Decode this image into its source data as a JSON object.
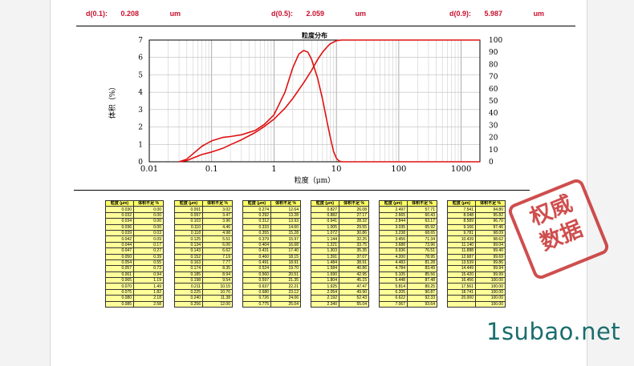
{
  "summary": [
    {
      "label": "d(0.1):",
      "value": "0.208",
      "unit": "um"
    },
    {
      "label": "d(0.5):",
      "value": "2.059",
      "unit": "um"
    },
    {
      "label": "d(0.9):",
      "value": "5.987",
      "unit": "um"
    }
  ],
  "chart_data": {
    "type": "line",
    "title": "粒度分布",
    "xlabel": "粒度（μm）",
    "ylabel": "体积（%）",
    "xscale": "log",
    "xlim": [
      0.01,
      2000
    ],
    "ylim_left": [
      0,
      7
    ],
    "ylim_right": [
      0,
      100
    ],
    "x_tick_labels": [
      "0.01",
      "0.1",
      "1",
      "10",
      "100",
      "1000"
    ],
    "y_left_tick_labels": [
      "0",
      "1",
      "2",
      "3",
      "4",
      "5",
      "6",
      "7"
    ],
    "y_right_tick_labels": [
      "0",
      "10",
      "20",
      "30",
      "40",
      "50",
      "60",
      "70",
      "80",
      "90",
      "100"
    ],
    "grid": true,
    "series": [
      {
        "axis": "left",
        "x": [
          0.03,
          0.04,
          0.05,
          0.07,
          0.1,
          0.15,
          0.2,
          0.3,
          0.5,
          0.7,
          1.0,
          1.5,
          2.0,
          2.5,
          3.0,
          3.5,
          4.0,
          5.0,
          6.0,
          7.0,
          8.0,
          9.0,
          10,
          11,
          12,
          14,
          20,
          50,
          100,
          1000,
          2000
        ],
        "y": [
          0,
          0.15,
          0.45,
          0.9,
          1.2,
          1.4,
          1.45,
          1.55,
          1.8,
          2.15,
          2.7,
          4.0,
          5.4,
          6.2,
          6.4,
          6.3,
          5.9,
          4.8,
          3.6,
          2.4,
          1.4,
          0.6,
          0.2,
          0.05,
          0,
          0,
          0,
          0,
          0,
          0,
          0
        ]
      },
      {
        "axis": "right",
        "x": [
          0.03,
          0.04,
          0.05,
          0.07,
          0.1,
          0.15,
          0.2,
          0.3,
          0.5,
          0.7,
          1.0,
          1.5,
          2.0,
          3.0,
          4.0,
          5.0,
          6.0,
          7.0,
          8.0,
          10,
          12,
          15,
          20,
          50,
          100,
          1000,
          2000
        ],
        "y": [
          0,
          1,
          3,
          6,
          8,
          11,
          14,
          18,
          24,
          29,
          35,
          44,
          52,
          65,
          75,
          84,
          90,
          94,
          97,
          99.5,
          100,
          100,
          100,
          100,
          100,
          100,
          100
        ]
      }
    ]
  },
  "table": {
    "headers": [
      "粒度 (μm)",
      "体积不足 %"
    ],
    "blocks": [
      [
        [
          "0.030",
          "0.00"
        ],
        [
          "0.032",
          "0.00"
        ],
        [
          "0.034",
          "0.00"
        ],
        [
          "0.036",
          "0.00"
        ],
        [
          "0.039",
          "0.03"
        ],
        [
          "0.042",
          "0.09"
        ],
        [
          "0.044",
          "0.17"
        ],
        [
          "0.047",
          "0.27"
        ],
        [
          "0.050",
          "0.39"
        ],
        [
          "0.054",
          "0.55"
        ],
        [
          "0.057",
          "0.73"
        ],
        [
          "0.061",
          "0.94"
        ],
        [
          "0.065",
          "1.19"
        ],
        [
          "0.070",
          "1.49"
        ],
        [
          "0.075",
          "1.82"
        ],
        [
          "0.080",
          "2.18"
        ],
        [
          "0.085",
          "2.58"
        ]
      ],
      [
        [
          "0.091",
          "3.02"
        ],
        [
          "0.097",
          "3.47"
        ],
        [
          "0.103",
          "3.96"
        ],
        [
          "0.110",
          "4.46"
        ],
        [
          "0.118",
          "4.98"
        ],
        [
          "0.125",
          "5.51"
        ],
        [
          "0.134",
          "6.06"
        ],
        [
          "0.143",
          "6.62"
        ],
        [
          "0.152",
          "7.19"
        ],
        [
          "0.163",
          "7.77"
        ],
        [
          "0.174",
          "8.35"
        ],
        [
          "0.185",
          "8.94"
        ],
        [
          "0.198",
          "9.54"
        ],
        [
          "0.211",
          "10.15"
        ],
        [
          "0.225",
          "10.76"
        ],
        [
          "0.240",
          "11.38"
        ],
        [
          "0.256",
          "12.00"
        ]
      ],
      [
        [
          "0.274",
          "12.64"
        ],
        [
          "0.292",
          "13.28"
        ],
        [
          "0.312",
          "13.93"
        ],
        [
          "0.333",
          "14.60"
        ],
        [
          "0.355",
          "15.28"
        ],
        [
          "0.379",
          "15.97"
        ],
        [
          "0.404",
          "16.68"
        ],
        [
          "0.431",
          "17.40"
        ],
        [
          "0.460",
          "18.15"
        ],
        [
          "0.491",
          "18.91"
        ],
        [
          "0.524",
          "19.70"
        ],
        [
          "0.560",
          "20.51"
        ],
        [
          "0.597",
          "21.35"
        ],
        [
          "0.637",
          "22.21"
        ],
        [
          "0.680",
          "23.12"
        ],
        [
          "0.726",
          "24.06"
        ],
        [
          "0.775",
          "25.04"
        ]
      ],
      [
        [
          "0.827",
          "26.08"
        ],
        [
          "0.882",
          "27.17"
        ],
        [
          "0.941",
          "28.32"
        ],
        [
          "1.005",
          "29.55"
        ],
        [
          "1.072",
          "30.86"
        ],
        [
          "1.144",
          "32.25"
        ],
        [
          "1.221",
          "33.75"
        ],
        [
          "1.303",
          "35.35"
        ],
        [
          "1.391",
          "37.07"
        ],
        [
          "1.484",
          "38.91"
        ],
        [
          "1.584",
          "40.86"
        ],
        [
          "1.690",
          "42.95"
        ],
        [
          "1.804",
          "45.15"
        ],
        [
          "1.925",
          "47.47"
        ],
        [
          "2.054",
          "49.90"
        ],
        [
          "2.192",
          "52.43"
        ],
        [
          "2.340",
          "55.04"
        ]
      ],
      [
        [
          "2.497",
          "57.71"
        ],
        [
          "2.665",
          "60.43"
        ],
        [
          "2.844",
          "63.17"
        ],
        [
          "3.035",
          "65.92"
        ],
        [
          "3.238",
          "68.65"
        ],
        [
          "3.456",
          "71.34"
        ],
        [
          "3.688",
          "73.96"
        ],
        [
          "3.936",
          "76.51"
        ],
        [
          "4.200",
          "78.95"
        ],
        [
          "4.483",
          "81.28"
        ],
        [
          "4.784",
          "83.49"
        ],
        [
          "5.105",
          "85.56"
        ],
        [
          "5.448",
          "87.48"
        ],
        [
          "5.814",
          "89.25"
        ],
        [
          "6.205",
          "90.87"
        ],
        [
          "6.622",
          "92.33"
        ],
        [
          "7.067",
          "93.64"
        ]
      ],
      [
        [
          "7.541",
          "94.80"
        ],
        [
          "8.048",
          "95.82"
        ],
        [
          "8.589",
          "96.70"
        ],
        [
          "9.166",
          "97.46"
        ],
        [
          "9.781",
          "98.09"
        ],
        [
          "10.439",
          "98.62"
        ],
        [
          "11.140",
          "99.04"
        ],
        [
          "11.888",
          "99.40"
        ],
        [
          "12.687",
          "99.69"
        ],
        [
          "13.539",
          "99.86"
        ],
        [
          "14.449",
          "99.94"
        ],
        [
          "15.420",
          "99.99"
        ],
        [
          "16.456",
          "100.00"
        ],
        [
          "17.561",
          "100.00"
        ],
        [
          "18.741",
          "100.00"
        ],
        [
          "20.000",
          "100.00"
        ],
        [
          "",
          "100.00"
        ]
      ]
    ]
  },
  "stamp": {
    "row1": "权威",
    "row2": "数据"
  },
  "watermark": "1subao.net"
}
